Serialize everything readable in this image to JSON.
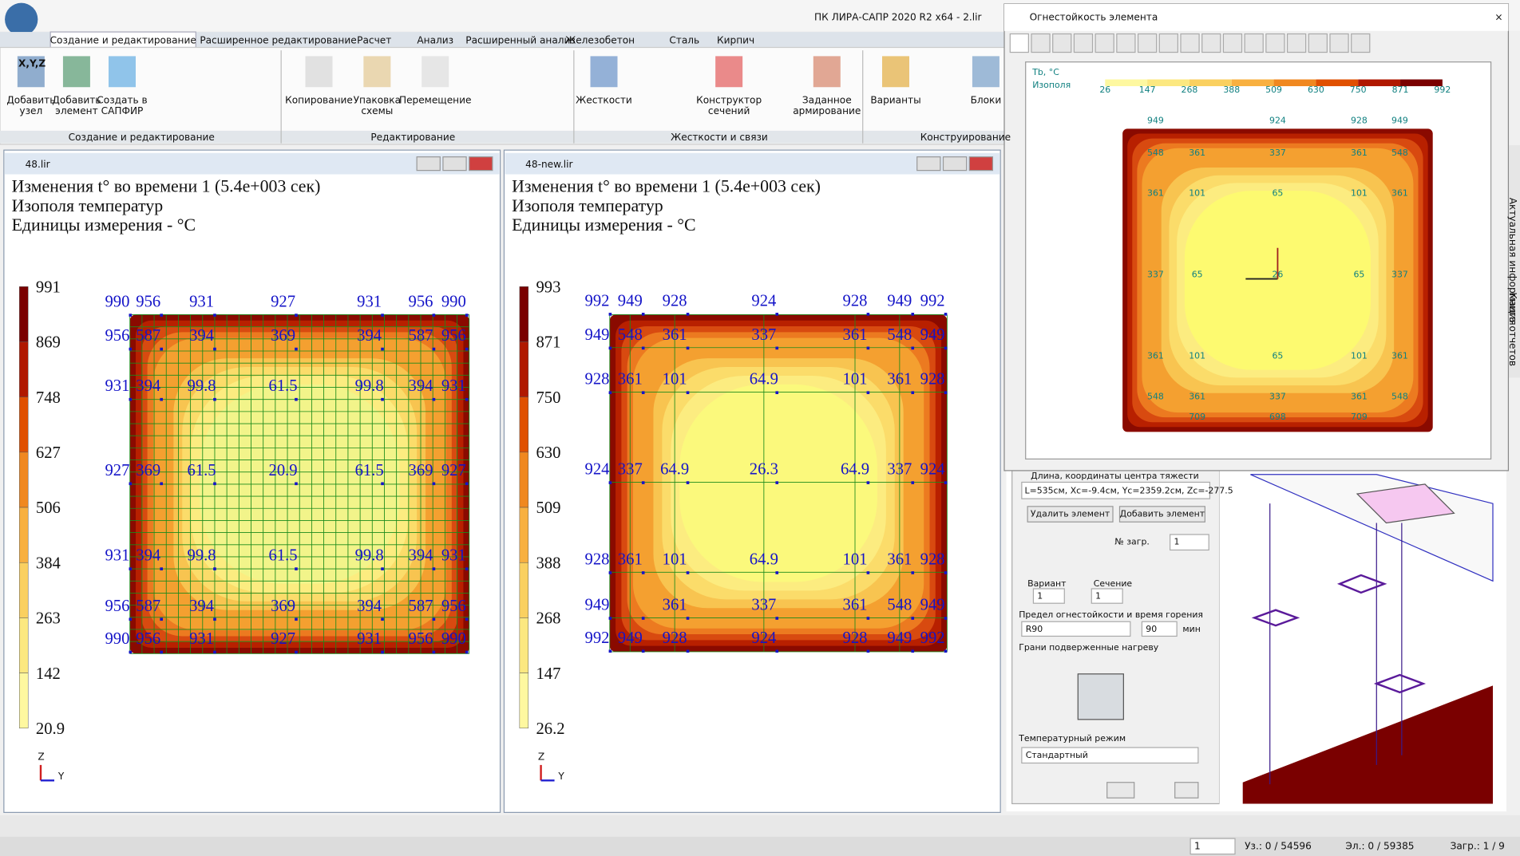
{
  "app": {
    "title": "ПК ЛИРА-САПР  2020 R2 x64 - 2.lir",
    "tabs": [
      "Создание и редактирование",
      "Расширенное редактирование",
      "Расчет",
      "Анализ",
      "Расширенный анализ",
      "Железобетон",
      "Сталь",
      "Кирпич"
    ],
    "groups": [
      "Создание и редактирование",
      "Редактирование",
      "Жесткости и связи",
      "Конструирование"
    ],
    "buttons": [
      [
        "Добавить",
        "узел"
      ],
      [
        "Добавить",
        "элемент"
      ],
      [
        "Создать в",
        "САПФИР"
      ],
      [
        "Копирование"
      ],
      [
        "Упаковка",
        "схемы"
      ],
      [
        "Перемещение"
      ],
      [
        "Жесткости"
      ],
      [
        "Конструктор",
        "сечений"
      ],
      [
        "Заданное",
        "армирование"
      ],
      [
        "Варианты"
      ],
      [
        "Блоки"
      ]
    ],
    "icon_text": "X,Y,Z",
    "side_tabs": [
      "Актуальная информация",
      "Книга отчетов"
    ],
    "status": [
      "Уз.: 0 / 54596",
      "Эл.: 0 / 59385",
      "Загр.: 1 / 9"
    ],
    "status_load": "1"
  },
  "windows": [
    {
      "title": "48.lir",
      "header": [
        "Изменения t° во времени 1 (5.4e+003 сек)",
        "Изополя температур",
        "Единицы измерения - °C"
      ],
      "legend": [
        991,
        869,
        748,
        627,
        506,
        384,
        263,
        142,
        20.9
      ],
      "grid": [
        [
          990,
          956,
          931,
          927,
          931,
          956,
          990
        ],
        [
          956,
          587,
          394,
          369,
          394,
          587,
          956
        ],
        [
          931,
          394,
          99.8,
          61.5,
          99.8,
          394,
          931
        ],
        [
          927,
          369,
          61.5,
          20.9,
          61.5,
          369,
          927
        ],
        [
          931,
          394,
          99.8,
          61.5,
          99.8,
          394,
          931
        ],
        [
          956,
          587,
          394,
          369,
          394,
          587,
          956
        ],
        [
          990,
          956,
          931,
          927,
          931,
          956,
          990
        ]
      ],
      "axes": [
        "Z",
        "Y"
      ]
    },
    {
      "title": "48-new.lir",
      "header": [
        "Изменения t° во времени 1 (5.4e+003 сек)",
        "Изополя температур",
        "Единицы измерения - °C"
      ],
      "legend": [
        993,
        871,
        750,
        630,
        509,
        388,
        268,
        147,
        26.2
      ],
      "grid": [
        [
          992,
          949,
          928,
          924,
          928,
          949,
          992
        ],
        [
          949,
          548,
          361,
          337,
          361,
          548,
          949
        ],
        [
          928,
          361,
          101,
          64.9,
          101,
          361,
          928
        ],
        [
          924,
          337,
          64.9,
          26.3,
          64.9,
          337,
          924
        ],
        [
          928,
          361,
          101,
          64.9,
          101,
          361,
          928
        ],
        [
          949,
          null,
          361,
          337,
          361,
          548,
          949
        ],
        [
          992,
          949,
          928,
          924,
          928,
          949,
          992
        ]
      ],
      "axes": [
        "Z",
        "Y"
      ]
    }
  ],
  "dialog": {
    "title": "Огнестойкость элемента",
    "unit": "Tb, °C",
    "mode": "Изополя",
    "scale": [
      26,
      147,
      268,
      388,
      509,
      630,
      750,
      871,
      992
    ],
    "grid": [
      [
        949,
        null,
        924,
        928,
        949
      ],
      [
        548,
        361,
        337,
        361,
        548
      ],
      [
        361,
        101,
        65,
        101,
        361
      ],
      [
        337,
        65,
        26,
        65,
        337
      ],
      [
        361,
        101,
        65,
        101,
        361
      ],
      [
        548,
        361,
        337,
        361,
        548
      ],
      [
        null,
        709,
        698,
        709,
        null
      ]
    ]
  },
  "panel": {
    "geometry_label": "Длина, координаты центра тяжести",
    "geometry": "L=535см, Xc=-9.4см, Yc=2359.2см, Zc=-277.5",
    "delete": "Удалить элемент",
    "add": "Добавить элемент",
    "load_label": "№ загр.",
    "load": "1",
    "variant_label": "Вариант",
    "variant": "1",
    "section_label": "Сечение",
    "section": "1",
    "fire_label": "Предел огнестойкости и время горения",
    "fire_class": "R90",
    "fire_time": "90",
    "fire_unit": "мин",
    "faces_label": "Грани подверженные нагреву",
    "regime_label": "Температурный режим",
    "regime": "Стандартный"
  }
}
